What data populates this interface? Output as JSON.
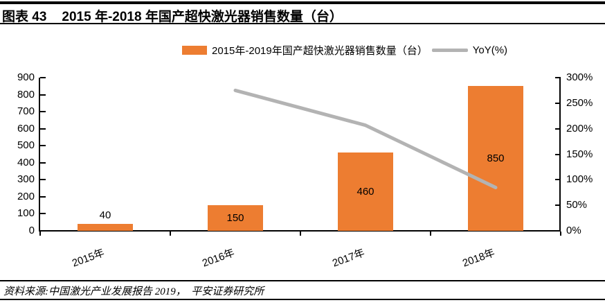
{
  "header": {
    "figure_label": "图表 43",
    "title": "2015 年-2018 年国产超快激光器销售数量（台）"
  },
  "legend": {
    "bar_label": "2015年-2019年国产超快激光器销售数量（台）",
    "line_label": "YoY(%)"
  },
  "source": {
    "text": "资料来源:中国激光产业发展报告 2019，  平安证券研究所"
  },
  "colors": {
    "bar": "#ED7D31",
    "line": "#B3B3B3",
    "axis": "#000000",
    "text": "#000000"
  },
  "chart_data": {
    "type": "bar",
    "title": "2015 年-2018 年国产超快激光器销售数量（台）",
    "categories": [
      "2015年",
      "2016年",
      "2017年",
      "2018年"
    ],
    "series": [
      {
        "name": "2015年-2019年国产超快激光器销售数量（台）",
        "type": "bar",
        "axis": "left",
        "values": [
          40,
          150,
          460,
          850
        ],
        "labels": [
          "40",
          "150",
          "460",
          "850"
        ],
        "color": "#ED7D31"
      },
      {
        "name": "YoY(%)",
        "type": "line",
        "axis": "right",
        "values": [
          null,
          275,
          206.7,
          84.8
        ],
        "color": "#B3B3B3"
      }
    ],
    "left_axis": {
      "min": 0,
      "max": 900,
      "step": 100,
      "ticks": [
        "0",
        "100",
        "200",
        "300",
        "400",
        "500",
        "600",
        "700",
        "800",
        "900"
      ]
    },
    "right_axis": {
      "min": 0,
      "max": 300,
      "step": 50,
      "ticks": [
        "0%",
        "50%",
        "100%",
        "150%",
        "200%",
        "250%",
        "300%"
      ]
    },
    "grid": false,
    "legend_position": "top"
  }
}
